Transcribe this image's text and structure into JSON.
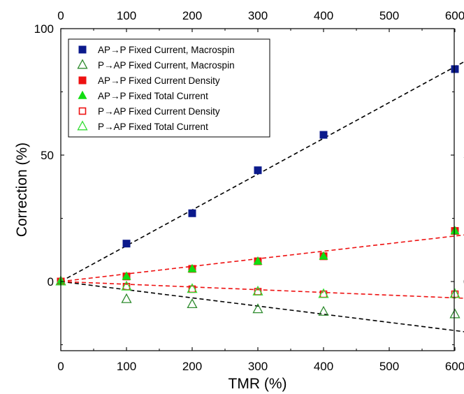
{
  "chart_data": {
    "type": "scatter",
    "xlabel": "TMR (%)",
    "ylabel": "Correction (%)",
    "xlim": [
      0,
      650
    ],
    "ylim": [
      -25,
      100
    ],
    "xticks": [
      0,
      100,
      200,
      300,
      400,
      500,
      600
    ],
    "yticks": [
      0,
      50,
      100
    ],
    "grid": false,
    "mirror_axes": true,
    "legend_position": "top-left",
    "series": [
      {
        "name": "AP→P Fixed Current, Macrospin",
        "marker": "square-filled",
        "color": "#0b1a8c",
        "x": [
          0,
          100,
          200,
          300,
          400,
          600
        ],
        "y": [
          0,
          15,
          27,
          44,
          58,
          84
        ]
      },
      {
        "name": "P→AP Fixed Current, Macrospin",
        "marker": "triangle-open",
        "color": "#2e8b2e",
        "x": [
          0,
          100,
          200,
          300,
          400,
          600
        ],
        "y": [
          0,
          -7,
          -9,
          -11,
          -12,
          -13
        ]
      },
      {
        "name": "AP→P Fixed Current Density",
        "marker": "square-filled",
        "color": "#ee1111",
        "x": [
          0,
          100,
          200,
          300,
          400,
          600
        ],
        "y": [
          0,
          2,
          5,
          8,
          10,
          20
        ]
      },
      {
        "name": "AP→P Fixed Total Current",
        "marker": "triangle-filled",
        "color": "#11dd11",
        "x": [
          0,
          100,
          200,
          300,
          400,
          600
        ],
        "y": [
          0,
          2,
          5,
          8,
          10,
          20
        ]
      },
      {
        "name": "P→AP Fixed Current Density",
        "marker": "square-open",
        "color": "#ee1111",
        "x": [
          0,
          100,
          200,
          300,
          400,
          600
        ],
        "y": [
          0,
          -2,
          -3,
          -4,
          -5,
          -5
        ]
      },
      {
        "name": "P→AP Fixed Total Current",
        "marker": "triangle-open",
        "color": "#33dd33",
        "x": [
          0,
          100,
          200,
          300,
          400,
          600
        ],
        "y": [
          0,
          -2,
          -3,
          -4,
          -5,
          -5
        ]
      }
    ],
    "fit_lines": [
      {
        "color": "#000000",
        "style": "dashed",
        "x": [
          0,
          650
        ],
        "y": [
          0,
          92
        ]
      },
      {
        "color": "#000000",
        "style": "dashed",
        "x": [
          0,
          650
        ],
        "y": [
          0,
          -21
        ]
      },
      {
        "color": "#ee1111",
        "style": "dashed",
        "x": [
          0,
          650
        ],
        "y": [
          0,
          19.5
        ]
      },
      {
        "color": "#ee1111",
        "style": "dashed",
        "x": [
          0,
          650
        ],
        "y": [
          0,
          -7
        ]
      }
    ]
  }
}
